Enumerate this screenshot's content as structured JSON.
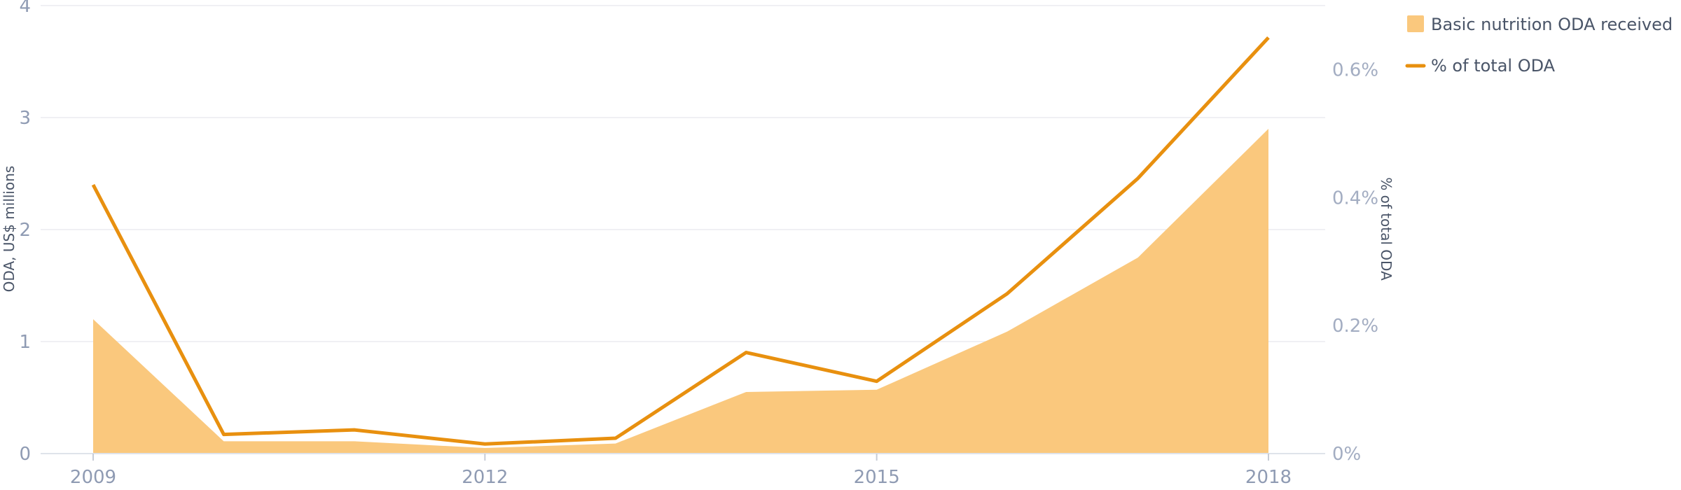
{
  "chart_data": {
    "type": "area",
    "x": [
      2009,
      2010,
      2011,
      2012,
      2013,
      2014,
      2015,
      2016,
      2017,
      2018
    ],
    "x_ticks": [
      "2009",
      "2012",
      "2015",
      "2018"
    ],
    "series": [
      {
        "name": "Basic nutrition ODA received",
        "type": "area",
        "axis": "left",
        "values": [
          1.2,
          0.11,
          0.11,
          0.05,
          0.09,
          0.55,
          0.57,
          1.09,
          1.75,
          2.9
        ],
        "color": "#fac87d"
      },
      {
        "name": "% of total ODA",
        "type": "line",
        "axis": "right",
        "values": [
          0.42,
          0.03,
          0.037,
          0.015,
          0.024,
          0.158,
          0.113,
          0.25,
          0.43,
          0.65
        ],
        "color": "#e8900f"
      }
    ],
    "ylabel": "ODA, US$ millions",
    "ylabel_right": "% of total ODA",
    "ylim": [
      0,
      4
    ],
    "ylim_right": [
      0,
      0.7
    ],
    "y_ticks": [
      "0",
      "1",
      "2",
      "3",
      "4"
    ],
    "y_ticks_right": [
      "0%",
      "0.2%",
      "0.4%",
      "0.6%"
    ],
    "y_ticks_right_values": [
      0,
      0.2,
      0.4,
      0.6
    ],
    "grid": true,
    "legend_position": "top-right"
  }
}
